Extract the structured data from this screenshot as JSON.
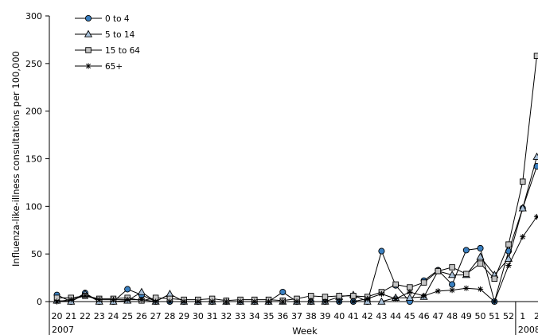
{
  "chart_data": {
    "type": "line",
    "title": "",
    "xlabel": "Week",
    "ylabel": "Influenza-like-illness consultations per 100,000",
    "ylim": [
      0,
      300
    ],
    "yticks": [
      "0",
      "50",
      "100",
      "150",
      "200",
      "250",
      "300"
    ],
    "grid": false,
    "legend_position": "top-left",
    "categories": [
      "20",
      "21",
      "22",
      "23",
      "24",
      "25",
      "26",
      "27",
      "28",
      "29",
      "30",
      "31",
      "32",
      "33",
      "34",
      "35",
      "36",
      "37",
      "38",
      "39",
      "40",
      "41",
      "42",
      "43",
      "44",
      "45",
      "46",
      "47",
      "48",
      "49",
      "50",
      "51",
      "52",
      "1",
      "2"
    ],
    "year_labels": [
      {
        "label": "2007",
        "at": "20"
      },
      {
        "label": "2008",
        "at": "1"
      }
    ],
    "series": [
      {
        "name": "0 to 4",
        "marker": "circle",
        "color": "#3a7fc0",
        "values": [
          7,
          0,
          9,
          0,
          0,
          13,
          7,
          0,
          0,
          0,
          0,
          0,
          0,
          0,
          0,
          0,
          10,
          0,
          0,
          0,
          0,
          0,
          0,
          53,
          17,
          0,
          22,
          33,
          18,
          54,
          56,
          0,
          53,
          98,
          142
        ]
      },
      {
        "name": "5 to 14",
        "marker": "triangle",
        "color": "#a8c0d8",
        "values": [
          1,
          0,
          8,
          0,
          0,
          1,
          10,
          0,
          8,
          0,
          0,
          0,
          0,
          0,
          0,
          0,
          0,
          0,
          0,
          0,
          5,
          7,
          0,
          0,
          4,
          4,
          5,
          32,
          28,
          28,
          47,
          28,
          45,
          98,
          152
        ]
      },
      {
        "name": "15 to 64",
        "marker": "square",
        "color": "#c4c4c4",
        "values": [
          4,
          4,
          6,
          3,
          3,
          4,
          1,
          4,
          3,
          2,
          2,
          3,
          1,
          2,
          2,
          2,
          1,
          3,
          6,
          5,
          6,
          6,
          5,
          10,
          18,
          15,
          20,
          32,
          36,
          29,
          40,
          24,
          60,
          126,
          258
        ]
      },
      {
        "name": "65+",
        "marker": "star",
        "color": "#000000",
        "values": [
          0,
          2,
          6,
          2,
          2,
          2,
          2,
          0,
          0,
          0,
          0,
          0,
          0,
          0,
          0,
          0,
          0,
          0,
          0,
          0,
          0,
          0,
          3,
          8,
          3,
          10,
          6,
          11,
          12,
          14,
          13,
          0,
          38,
          68,
          89
        ]
      }
    ]
  }
}
